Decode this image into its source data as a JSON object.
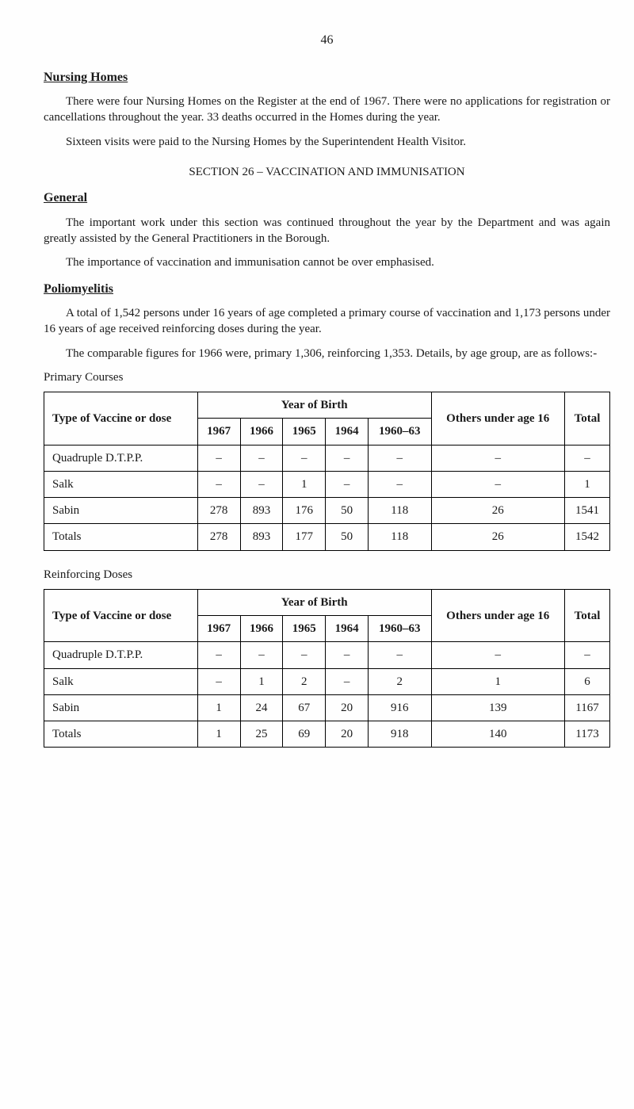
{
  "page_number": "46",
  "nursing_homes": {
    "heading": "Nursing Homes",
    "p1": "There were four Nursing Homes on the Register at the end of 1967. There were no applications for registration or cancellations throughout the year. 33 deaths occurred in the Homes during the year.",
    "p2": "Sixteen visits were paid to the Nursing Homes by the Superintendent Health Visitor."
  },
  "section26": {
    "title": "SECTION 26 – VACCINATION AND IMMUNISATION",
    "general_heading": "General",
    "p1": "The important work under this section was continued throughout the year by the Department and was again greatly assisted by the General Practitioners in the Borough.",
    "p2": "The importance of vaccination and immunisation cannot be over emphasised.",
    "polio_heading": "Poliomyelitis",
    "p3": "A total of 1,542 persons under 16 years of age completed a primary course of vaccination and 1,173 persons under 16 years of age received reinforcing doses during the year.",
    "p4": "The comparable figures for 1966 were, primary 1,306, reinforcing 1,353. Details, by age group, are as follows:-"
  },
  "table_common": {
    "vaccine_header": "Type of Vaccine or dose",
    "yob_header": "Year of Birth",
    "others_header": "Others under age 16",
    "total_header": "Total",
    "years": [
      "1967",
      "1966",
      "1965",
      "1964",
      "1960–63"
    ]
  },
  "primary": {
    "caption": "Primary Courses",
    "rows": [
      {
        "label": "Quadruple D.T.P.P.",
        "cells": [
          "–",
          "–",
          "–",
          "–",
          "–",
          "–",
          "–"
        ]
      },
      {
        "label": "Salk",
        "cells": [
          "–",
          "–",
          "1",
          "–",
          "–",
          "–",
          "1"
        ]
      },
      {
        "label": "Sabin",
        "cells": [
          "278",
          "893",
          "176",
          "50",
          "118",
          "26",
          "1541"
        ]
      }
    ],
    "totals": {
      "label": "Totals",
      "cells": [
        "278",
        "893",
        "177",
        "50",
        "118",
        "26",
        "1542"
      ]
    }
  },
  "reinforcing": {
    "caption": "Reinforcing Doses",
    "rows": [
      {
        "label": "Quadruple D.T.P.P.",
        "cells": [
          "–",
          "–",
          "–",
          "–",
          "–",
          "–",
          "–"
        ]
      },
      {
        "label": "Salk",
        "cells": [
          "–",
          "1",
          "2",
          "–",
          "2",
          "1",
          "6"
        ]
      },
      {
        "label": "Sabin",
        "cells": [
          "1",
          "24",
          "67",
          "20",
          "916",
          "139",
          "1167"
        ]
      }
    ],
    "totals": {
      "label": "Totals",
      "cells": [
        "1",
        "25",
        "69",
        "20",
        "918",
        "140",
        "1173"
      ]
    }
  }
}
